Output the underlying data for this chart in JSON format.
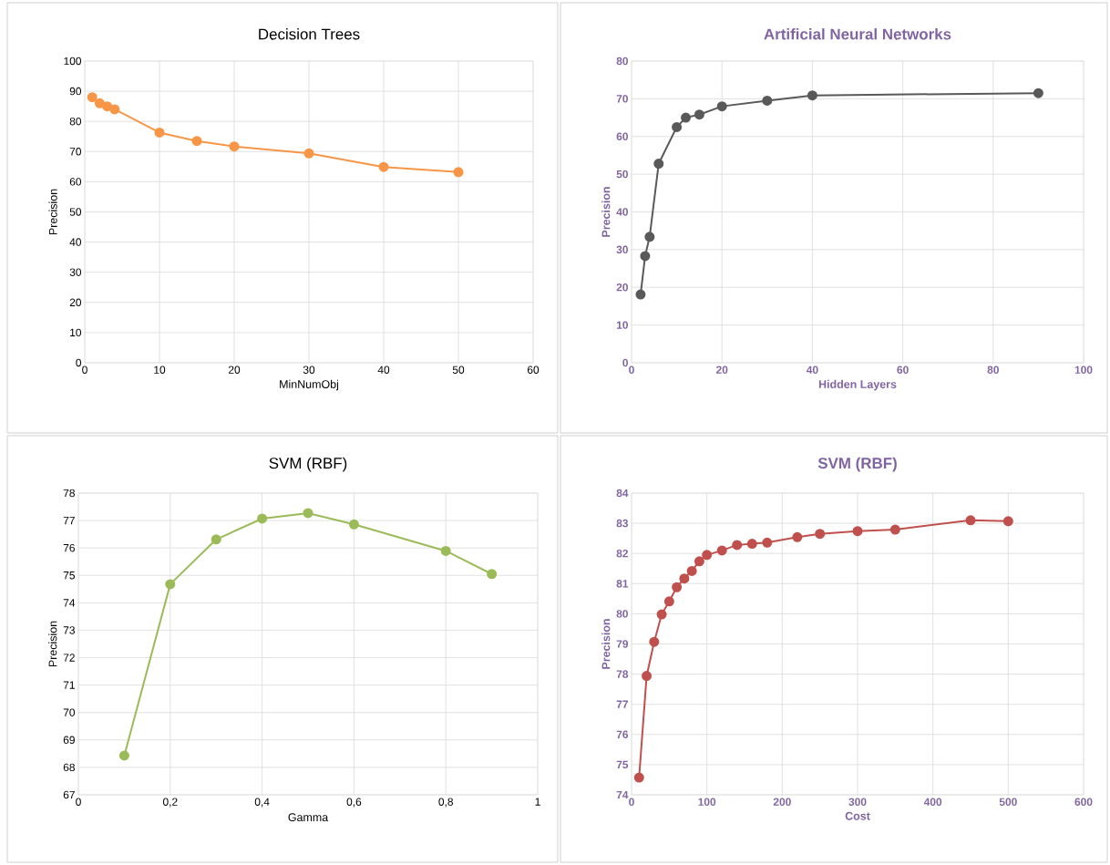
{
  "chart_data": [
    {
      "type": "line",
      "title": "Decision Trees",
      "xlabel": "MinNumObj",
      "ylabel": "Precision",
      "color": "#f79646",
      "marker": "circle",
      "grid": true,
      "x": [
        1,
        2,
        3,
        4,
        10,
        15,
        20,
        30,
        40,
        50
      ],
      "values": [
        88,
        86,
        85,
        84,
        76.3,
        73.5,
        71.7,
        69.4,
        64.9,
        63.2
      ],
      "xlim": [
        0,
        60
      ],
      "xticks": [
        0,
        10,
        20,
        30,
        40,
        50,
        60
      ],
      "ylim": [
        0,
        100
      ],
      "yticks": [
        0,
        10,
        20,
        30,
        40,
        50,
        60,
        70,
        80,
        90,
        100
      ]
    },
    {
      "type": "line",
      "title": "Artificial Neural Networks",
      "xlabel": "Hidden Layers",
      "ylabel": "Precision",
      "color": "#595959",
      "marker": "circle",
      "grid": true,
      "x": [
        2,
        3,
        4,
        6,
        10,
        12,
        15,
        20,
        30,
        40,
        90
      ],
      "values": [
        18.1,
        28.3,
        33.4,
        52.8,
        62.5,
        65,
        65.8,
        68,
        69.5,
        70.9,
        71.5
      ],
      "xlim": [
        0,
        100
      ],
      "xticks": [
        0,
        20,
        40,
        60,
        80,
        100
      ],
      "ylim": [
        0,
        80
      ],
      "yticks": [
        0,
        10,
        20,
        30,
        40,
        50,
        60,
        70,
        80
      ]
    },
    {
      "type": "line",
      "title": "SVM (RBF)",
      "xlabel": "Gamma",
      "ylabel": "Precision",
      "color": "#9bbb59",
      "marker": "circle",
      "grid": true,
      "x": [
        0.1,
        0.2,
        0.3,
        0.4,
        0.5,
        0.6,
        0.8,
        0.9
      ],
      "values": [
        68.43,
        74.68,
        76.31,
        77.07,
        77.27,
        76.86,
        75.89,
        75.05
      ],
      "xlim": [
        0,
        1
      ],
      "xticks": [
        0,
        {
          "value": 0.2,
          "label": "0,2"
        },
        {
          "value": 0.4,
          "label": "0,4"
        },
        {
          "value": 0.6,
          "label": "0,6"
        },
        {
          "value": 0.8,
          "label": "0,8"
        },
        1
      ],
      "ylim": [
        67,
        78
      ],
      "yticks": [
        67,
        68,
        69,
        70,
        71,
        72,
        73,
        74,
        75,
        76,
        77,
        78
      ]
    },
    {
      "type": "line",
      "title": "SVM (RBF)",
      "xlabel": "Cost",
      "ylabel": "Precision",
      "color": "#c0504d",
      "marker": "circle",
      "grid": true,
      "x": [
        10,
        20,
        30,
        40,
        50,
        60,
        70,
        80,
        90,
        100,
        120,
        140,
        160,
        180,
        220,
        250,
        300,
        350,
        450,
        500
      ],
      "values": [
        74.57,
        77.94,
        79.07,
        79.98,
        80.41,
        80.88,
        81.17,
        81.42,
        81.74,
        81.95,
        82.1,
        82.28,
        82.32,
        82.36,
        82.54,
        82.65,
        82.74,
        82.79,
        83.1,
        83.07
      ],
      "xlim": [
        0,
        600
      ],
      "xticks": [
        0,
        100,
        200,
        300,
        400,
        500,
        600
      ],
      "ylim": [
        74,
        84
      ],
      "yticks": [
        74,
        75,
        76,
        77,
        78,
        79,
        80,
        81,
        82,
        83,
        84
      ]
    }
  ]
}
